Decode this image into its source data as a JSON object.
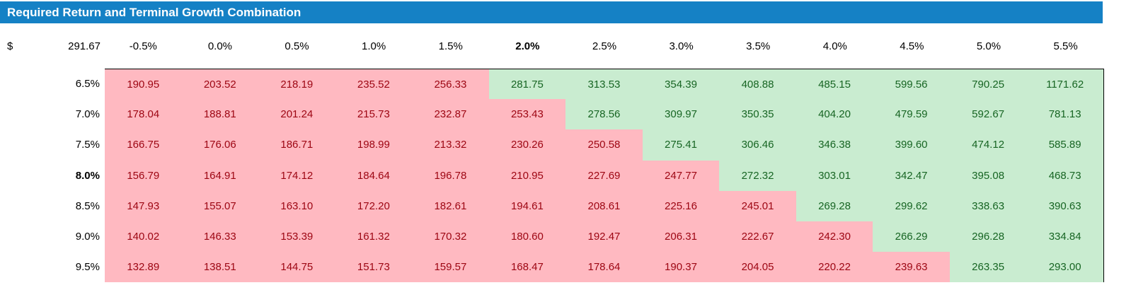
{
  "title_bar": {
    "title": "Required Return and Terminal Growth Combination",
    "background_color": "#1581C5",
    "text_color": "#FFFFFF"
  },
  "colors": {
    "below_bg": "#FFB9C1",
    "below_text": "#9C0512",
    "above_bg": "#C9ECD0",
    "above_text": "#176523",
    "border": "#000000"
  },
  "table": {
    "corner_dollar": "$",
    "corner_value": "291.67",
    "col_axis_name": "terminal-growth",
    "row_axis_name": "required-return",
    "col_headers": [
      "-0.5%",
      "0.0%",
      "0.5%",
      "1.0%",
      "1.5%",
      "2.0%",
      "2.5%",
      "3.0%",
      "3.5%",
      "4.0%",
      "4.5%",
      "5.0%",
      "5.5%"
    ],
    "bold_col_header": "2.0%",
    "bold_row_header": "8.0%",
    "rows": [
      {
        "label": "6.5%",
        "red_count": 5,
        "values": [
          "190.95",
          "203.52",
          "218.19",
          "235.52",
          "256.33",
          "281.75",
          "313.53",
          "354.39",
          "408.88",
          "485.15",
          "599.56",
          "790.25",
          "1171.62"
        ]
      },
      {
        "label": "7.0%",
        "red_count": 6,
        "values": [
          "178.04",
          "188.81",
          "201.24",
          "215.73",
          "232.87",
          "253.43",
          "278.56",
          "309.97",
          "350.35",
          "404.20",
          "479.59",
          "592.67",
          "781.13"
        ]
      },
      {
        "label": "7.5%",
        "red_count": 7,
        "values": [
          "166.75",
          "176.06",
          "186.71",
          "198.99",
          "213.32",
          "230.26",
          "250.58",
          "275.41",
          "306.46",
          "346.38",
          "399.60",
          "474.12",
          "585.89"
        ]
      },
      {
        "label": "8.0%",
        "red_count": 8,
        "values": [
          "156.79",
          "164.91",
          "174.12",
          "184.64",
          "196.78",
          "210.95",
          "227.69",
          "247.77",
          "272.32",
          "303.01",
          "342.47",
          "395.08",
          "468.73"
        ]
      },
      {
        "label": "8.5%",
        "red_count": 9,
        "values": [
          "147.93",
          "155.07",
          "163.10",
          "172.20",
          "182.61",
          "194.61",
          "208.61",
          "225.16",
          "245.01",
          "269.28",
          "299.62",
          "338.63",
          "390.63"
        ]
      },
      {
        "label": "9.0%",
        "red_count": 10,
        "values": [
          "140.02",
          "146.33",
          "153.39",
          "161.32",
          "170.32",
          "180.60",
          "192.47",
          "206.31",
          "222.67",
          "242.30",
          "266.29",
          "296.28",
          "334.84"
        ]
      },
      {
        "label": "9.5%",
        "red_count": 11,
        "values": [
          "132.89",
          "138.51",
          "144.75",
          "151.73",
          "159.57",
          "168.47",
          "178.64",
          "190.37",
          "204.05",
          "220.22",
          "239.63",
          "263.35",
          "293.00"
        ]
      }
    ]
  },
  "chart_data": {
    "type": "table",
    "title": "Required Return and Terminal Growth Combination",
    "base_value": "291.67",
    "columns": [
      "-0.5%",
      "0.0%",
      "0.5%",
      "1.0%",
      "1.5%",
      "2.0%",
      "2.5%",
      "3.0%",
      "3.5%",
      "4.0%",
      "4.5%",
      "5.0%",
      "5.5%"
    ],
    "row_labels": [
      "6.5%",
      "7.0%",
      "7.5%",
      "8.0%",
      "8.5%",
      "9.0%",
      "9.5%"
    ],
    "values": [
      [
        190.95,
        203.52,
        218.19,
        235.52,
        256.33,
        281.75,
        313.53,
        354.39,
        408.88,
        485.15,
        599.56,
        790.25,
        1171.62
      ],
      [
        178.04,
        188.81,
        201.24,
        215.73,
        232.87,
        253.43,
        278.56,
        309.97,
        350.35,
        404.2,
        479.59,
        592.67,
        781.13
      ],
      [
        166.75,
        176.06,
        186.71,
        198.99,
        213.32,
        230.26,
        250.58,
        275.41,
        306.46,
        346.38,
        399.6,
        474.12,
        585.89
      ],
      [
        156.79,
        164.91,
        174.12,
        184.64,
        196.78,
        210.95,
        227.69,
        247.77,
        272.32,
        303.01,
        342.47,
        395.08,
        468.73
      ],
      [
        147.93,
        155.07,
        163.1,
        172.2,
        182.61,
        194.61,
        208.61,
        225.16,
        245.01,
        269.28,
        299.62,
        338.63,
        390.63
      ],
      [
        140.02,
        146.33,
        153.39,
        161.32,
        170.32,
        180.6,
        192.47,
        206.31,
        222.67,
        242.3,
        266.29,
        296.28,
        334.84
      ],
      [
        132.89,
        138.51,
        144.75,
        151.73,
        159.57,
        168.47,
        178.64,
        190.37,
        204.05,
        220.22,
        239.63,
        263.35,
        293.0
      ]
    ]
  }
}
